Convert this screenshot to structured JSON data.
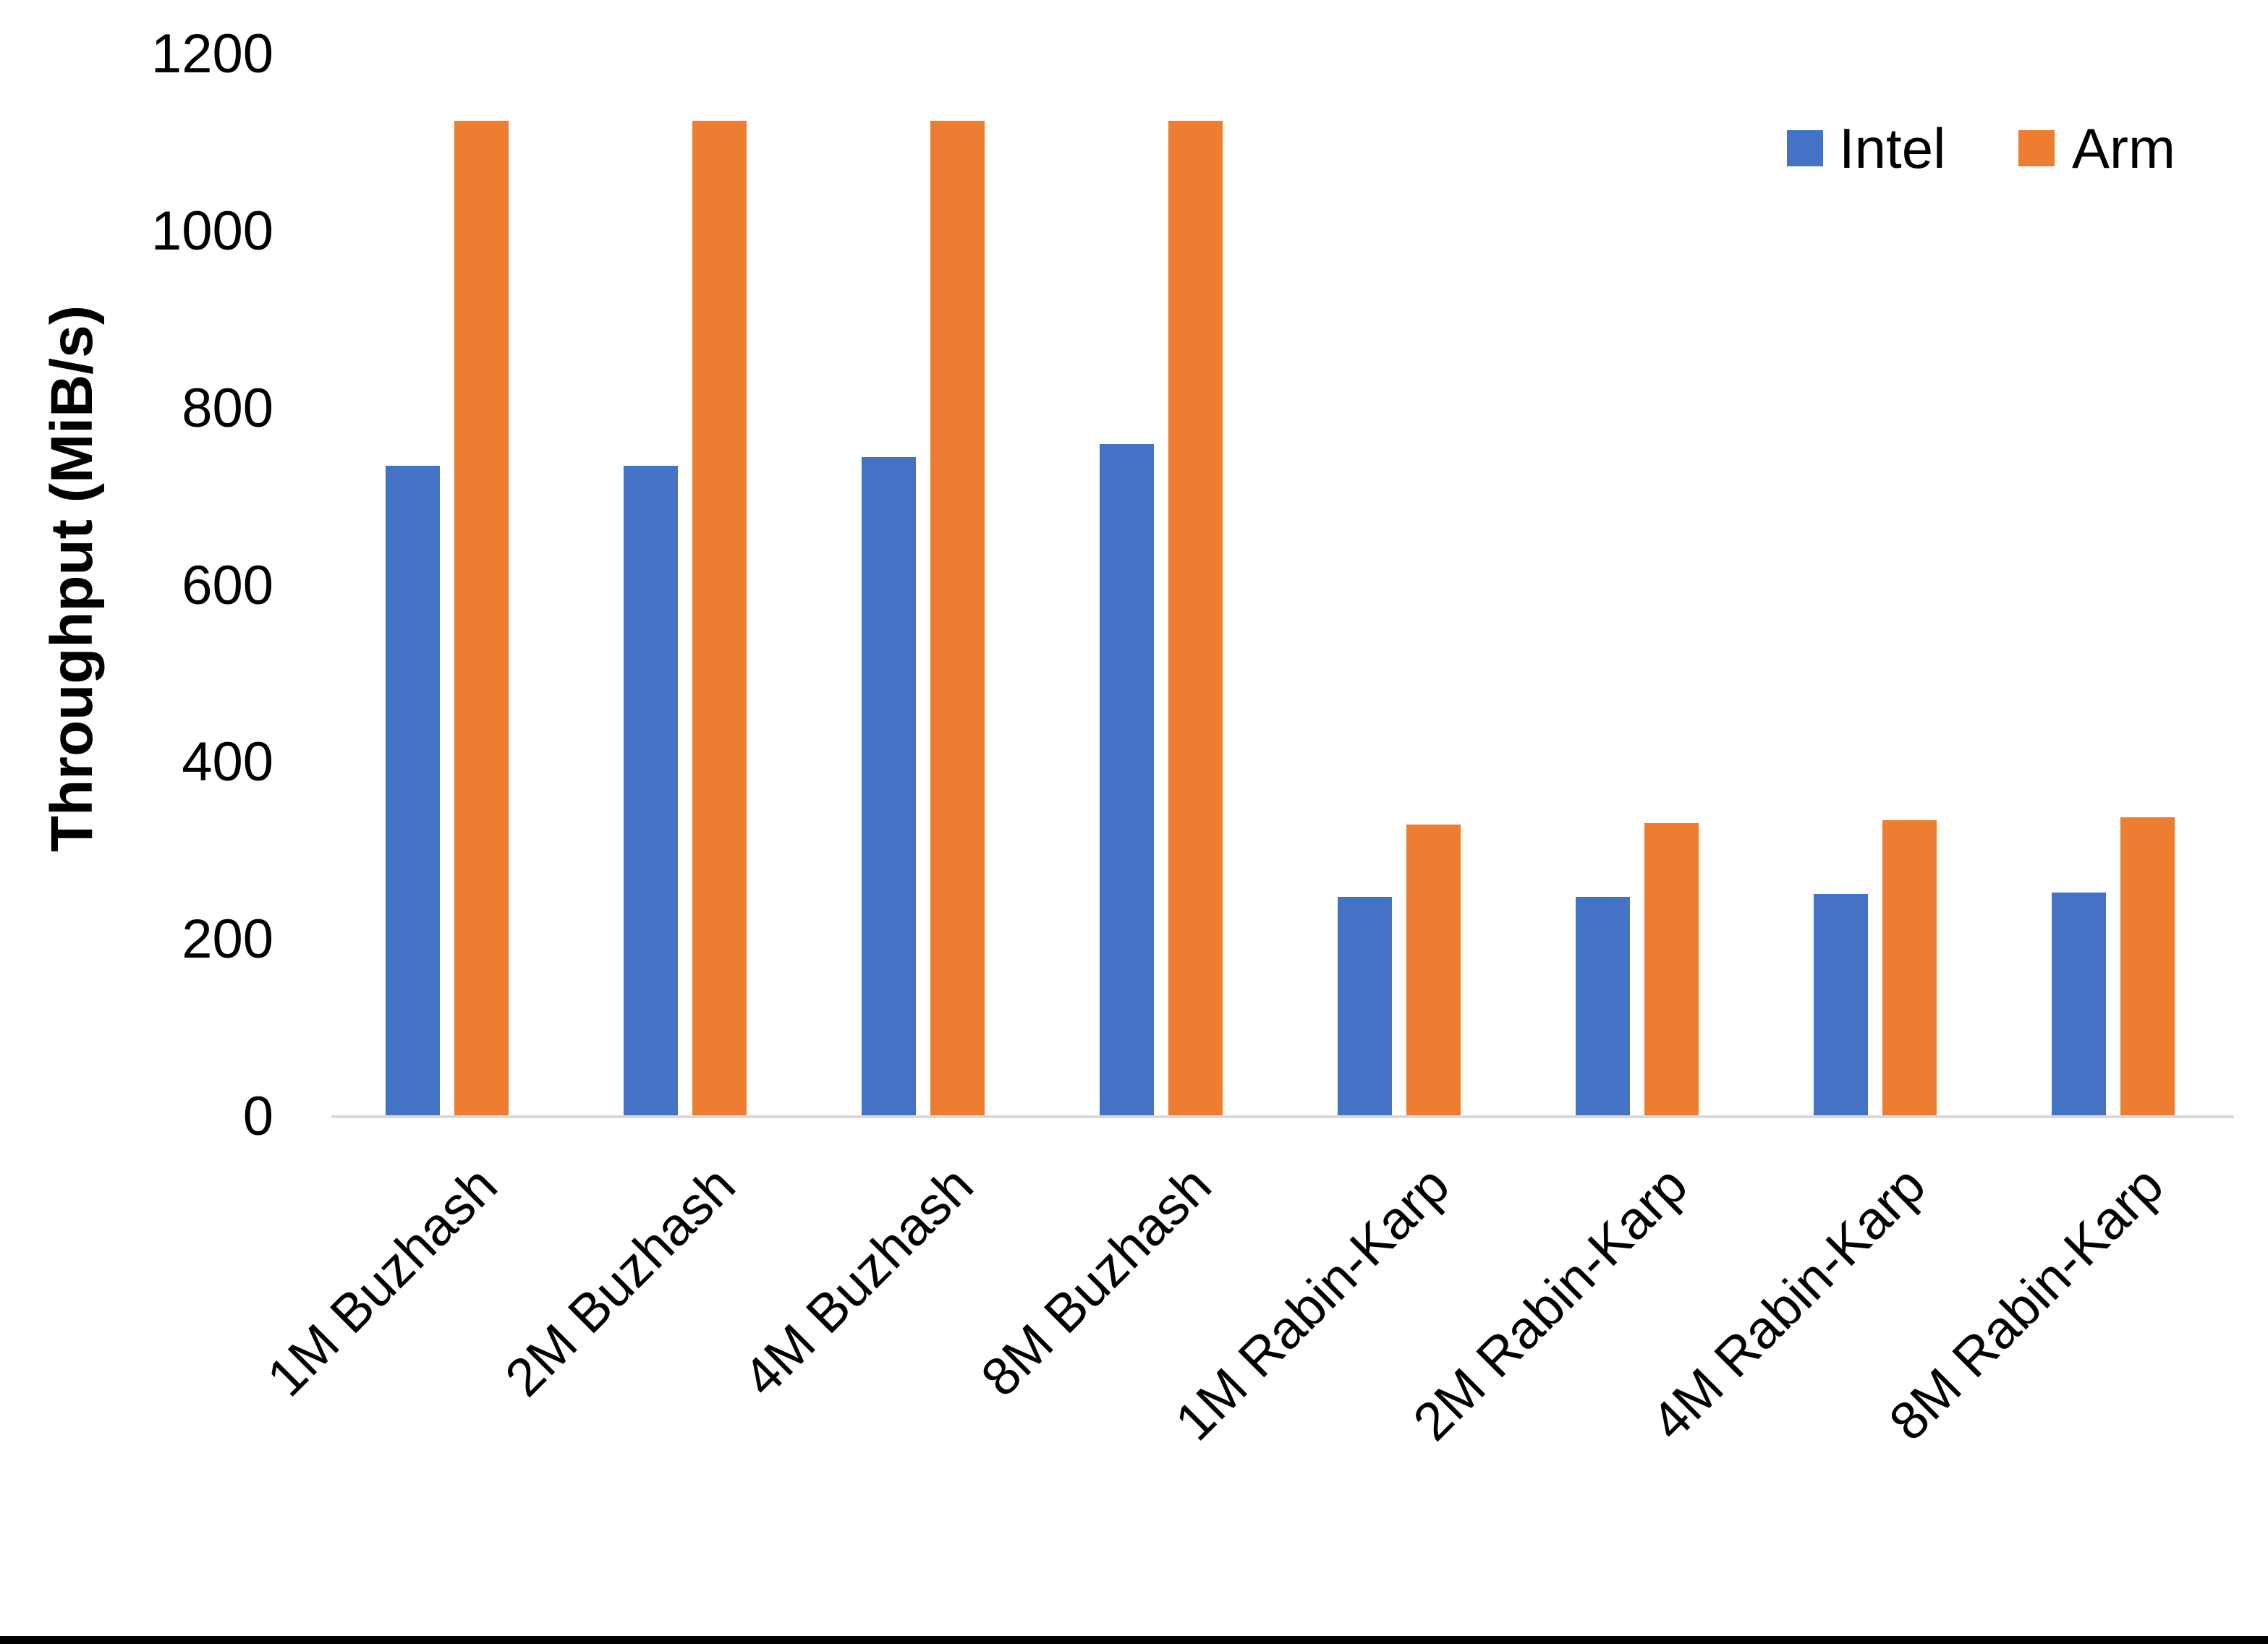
{
  "page": {
    "background": "#ffffff",
    "bottom_border_color": "#000000"
  },
  "chart_data": {
    "type": "bar",
    "title": "",
    "xlabel": "",
    "ylabel": "Throughput (MiB/s)",
    "categories": [
      "1M Buzhash",
      "2M Buzhash",
      "4M Buzhash",
      "8M Buzhash",
      "1M Rabin-Karp",
      "2M Rabin-Karp",
      "4M Rabin-Karp",
      "8M Rabin-Karp"
    ],
    "series": [
      {
        "name": "Intel",
        "color": "#4472C4",
        "values": [
          735,
          735,
          745,
          760,
          248,
          248,
          252,
          253
        ]
      },
      {
        "name": "Arm",
        "color": "#ED7D31",
        "values": [
          1125,
          1125,
          1125,
          1125,
          330,
          332,
          335,
          338
        ]
      }
    ],
    "ylim": [
      0,
      1200
    ],
    "yticks": [
      0,
      200,
      400,
      600,
      800,
      1000,
      1200
    ],
    "grid": false,
    "legend_position": "top-right",
    "axis_line_color": "#D9D9D9",
    "text_color": "#000000"
  }
}
